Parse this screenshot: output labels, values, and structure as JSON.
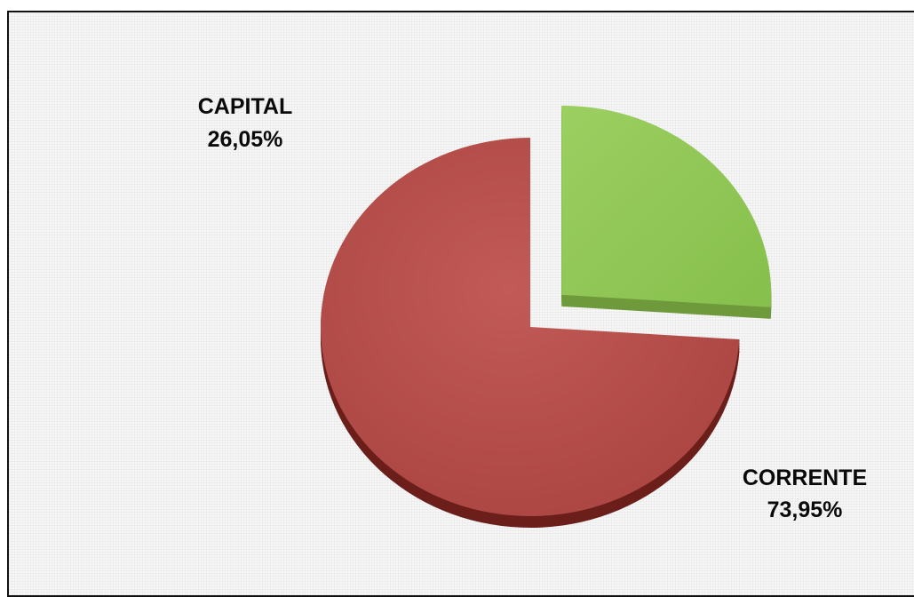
{
  "chart_data": {
    "type": "pie",
    "title": "",
    "slices": [
      {
        "label": "CAPITAL",
        "value": 26.05,
        "value_text": "26,05%",
        "color": "#92c957",
        "side_color": "#6e9a3c",
        "exploded": true
      },
      {
        "label": "CORRENTE",
        "value": 73.95,
        "value_text": "73,95%",
        "color": "#b9524f",
        "side_color": "#6b1e1a",
        "exploded": false
      }
    ],
    "style": "3d-exploded",
    "legend": "none"
  }
}
